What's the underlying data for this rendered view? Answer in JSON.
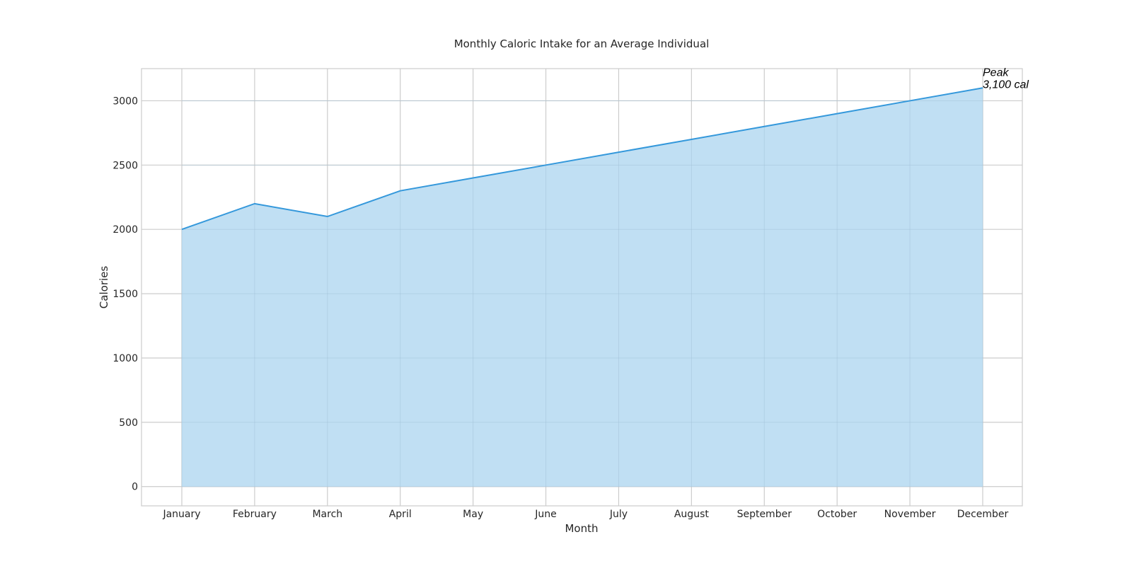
{
  "chart_data": {
    "type": "area",
    "title": "Monthly Caloric Intake for an Average Individual",
    "xlabel": "Month",
    "ylabel": "Calories",
    "categories": [
      "January",
      "February",
      "March",
      "April",
      "May",
      "June",
      "July",
      "August",
      "September",
      "October",
      "November",
      "December"
    ],
    "series": [
      {
        "values": [
          2000,
          2200,
          2100,
          2300,
          2400,
          2500,
          2600,
          2700,
          2800,
          2900,
          3000,
          3100
        ]
      }
    ],
    "yticks": [
      "0",
      "500",
      "1000",
      "1500",
      "2000",
      "2500",
      "3000"
    ],
    "ylim": [
      -150,
      3250
    ],
    "grid": true,
    "line_color": "#3498db",
    "fill_color": "#c0dff3",
    "grid_color": "#cccccc",
    "annotation": {
      "category": "December",
      "value": 3100,
      "lines": [
        "Peak",
        "3,100 cal"
      ]
    }
  }
}
